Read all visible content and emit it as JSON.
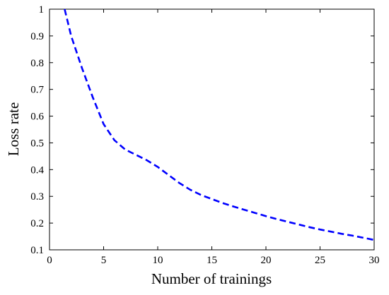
{
  "chart_data": {
    "type": "line",
    "title": "",
    "xlabel": "Number of trainings",
    "ylabel": "Loss rate",
    "xlim": [
      0,
      30
    ],
    "ylim": [
      0.1,
      1
    ],
    "xticks": [
      "0",
      "5",
      "10",
      "15",
      "20",
      "25",
      "30"
    ],
    "yticks": [
      "0.1",
      "0.2",
      "0.3",
      "0.4",
      "0.5",
      "0.6",
      "0.7",
      "0.8",
      "0.9",
      "1"
    ],
    "grid": false,
    "series": [
      {
        "color": "#0000ff",
        "line_style": "dashed",
        "x": [
          1.4,
          2,
          3,
          4,
          5,
          6,
          7,
          8,
          9,
          10,
          11,
          12,
          13,
          14,
          15,
          16,
          17,
          18,
          19,
          20,
          21,
          22,
          23,
          24,
          25,
          26,
          27,
          28,
          29,
          30
        ],
        "y": [
          1.0,
          0.9,
          0.78,
          0.67,
          0.57,
          0.51,
          0.475,
          0.455,
          0.435,
          0.41,
          0.38,
          0.35,
          0.325,
          0.305,
          0.29,
          0.275,
          0.262,
          0.25,
          0.238,
          0.226,
          0.215,
          0.205,
          0.195,
          0.185,
          0.176,
          0.168,
          0.16,
          0.153,
          0.145,
          0.137
        ]
      }
    ]
  }
}
